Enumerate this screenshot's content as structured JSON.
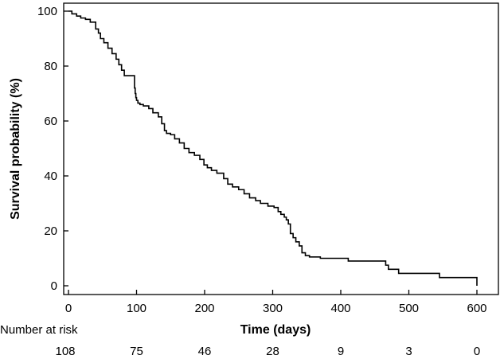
{
  "chart_data": {
    "type": "line",
    "xlabel": "Time (days)",
    "ylabel": "Survival probability (%)",
    "xlim": [
      -5,
      605
    ],
    "ylim": [
      -3,
      101
    ],
    "x_ticks": [
      0,
      100,
      200,
      300,
      400,
      500,
      600
    ],
    "y_ticks": [
      0,
      20,
      40,
      60,
      80,
      100
    ],
    "grid": false,
    "series": [
      {
        "step": true,
        "x": [
          0,
          5,
          12,
          18,
          25,
          32,
          40,
          44,
          47,
          52,
          58,
          64,
          70,
          74,
          78,
          82,
          88,
          97,
          98,
          99,
          100,
          102,
          105,
          110,
          118,
          124,
          132,
          137,
          141,
          144,
          150,
          156,
          163,
          170,
          177,
          185,
          193,
          199,
          204,
          210,
          218,
          228,
          234,
          241,
          250,
          258,
          266,
          275,
          282,
          293,
          302,
          308,
          312,
          317,
          320,
          323,
          326,
          330,
          334,
          339,
          343,
          348,
          354,
          370,
          411,
          460,
          466,
          470,
          485,
          545,
          598,
          600
        ],
        "y": [
          100,
          99,
          98.2,
          97.5,
          97,
          96,
          93.5,
          92,
          90,
          88.5,
          86.5,
          84.5,
          82.5,
          80.5,
          78.5,
          76.5,
          76.5,
          72,
          70,
          68.5,
          67.5,
          66.5,
          66,
          65.5,
          64.5,
          63,
          61.5,
          59,
          56.5,
          55.5,
          55,
          53.5,
          52,
          50,
          48.5,
          47.5,
          46,
          44,
          43,
          42,
          41,
          39,
          37,
          36,
          35,
          33.5,
          32,
          31,
          30,
          29,
          28.5,
          27,
          26,
          25,
          24,
          22.5,
          19,
          17.5,
          16,
          14.5,
          12,
          11,
          10.5,
          10,
          9,
          9,
          7.5,
          6,
          4.5,
          3,
          3,
          0
        ]
      }
    ],
    "risk_table": {
      "title": "Number at risk",
      "times": [
        0,
        100,
        200,
        300,
        400,
        500,
        600
      ],
      "counts": [
        "108",
        "75",
        "46",
        "28",
        "9",
        "3",
        "0"
      ]
    }
  }
}
